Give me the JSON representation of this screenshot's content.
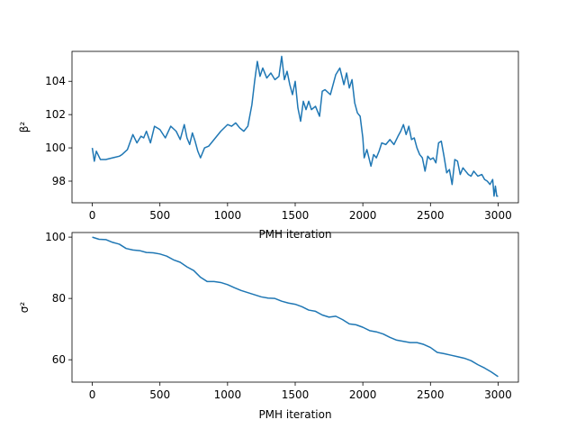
{
  "chart_data": [
    {
      "type": "line",
      "title": "",
      "xlabel": "PMH iteration",
      "ylabel": "β²",
      "xlim": [
        -150,
        3150
      ],
      "ylim": [
        96.7,
        105.8
      ],
      "xticks": [
        0,
        500,
        1000,
        1500,
        2000,
        2500,
        3000
      ],
      "yticks": [
        98,
        100,
        102,
        104
      ],
      "grid": false,
      "series": [
        {
          "color": "#1f77b4",
          "x": [
            0,
            15,
            30,
            60,
            100,
            150,
            200,
            220,
            260,
            300,
            330,
            360,
            380,
            400,
            430,
            460,
            500,
            540,
            580,
            620,
            650,
            680,
            700,
            720,
            740,
            760,
            780,
            800,
            830,
            860,
            900,
            950,
            1000,
            1030,
            1060,
            1090,
            1120,
            1150,
            1180,
            1200,
            1220,
            1240,
            1260,
            1290,
            1320,
            1350,
            1380,
            1400,
            1420,
            1440,
            1460,
            1480,
            1500,
            1520,
            1540,
            1560,
            1580,
            1600,
            1620,
            1650,
            1680,
            1700,
            1720,
            1760,
            1800,
            1830,
            1860,
            1880,
            1900,
            1920,
            1940,
            1960,
            1980,
            2000,
            2010,
            2030,
            2060,
            2080,
            2100,
            2120,
            2140,
            2170,
            2200,
            2230,
            2260,
            2280,
            2300,
            2320,
            2340,
            2360,
            2380,
            2400,
            2420,
            2440,
            2460,
            2480,
            2500,
            2520,
            2540,
            2560,
            2580,
            2600,
            2620,
            2640,
            2660,
            2680,
            2700,
            2720,
            2740,
            2760,
            2780,
            2800,
            2820,
            2850,
            2880,
            2900,
            2920,
            2940,
            2960,
            2970,
            2980,
            2990,
            3000
          ],
          "y": [
            100.0,
            99.2,
            99.8,
            99.3,
            99.3,
            99.4,
            99.5,
            99.6,
            99.9,
            100.8,
            100.3,
            100.7,
            100.6,
            101.0,
            100.3,
            101.3,
            101.1,
            100.6,
            101.3,
            101.0,
            100.5,
            101.4,
            100.6,
            100.2,
            100.9,
            100.4,
            99.8,
            99.4,
            100.0,
            100.1,
            100.5,
            101.0,
            101.4,
            101.3,
            101.5,
            101.2,
            101.0,
            101.3,
            102.6,
            104.0,
            105.2,
            104.3,
            104.8,
            104.2,
            104.5,
            104.1,
            104.3,
            105.5,
            104.1,
            104.6,
            103.8,
            103.2,
            104.0,
            102.4,
            101.6,
            102.8,
            102.3,
            102.8,
            102.3,
            102.5,
            101.9,
            103.4,
            103.5,
            103.2,
            104.4,
            104.8,
            103.8,
            104.5,
            103.6,
            104.1,
            102.7,
            102.1,
            101.9,
            100.6,
            99.4,
            99.9,
            98.9,
            99.6,
            99.4,
            99.8,
            100.3,
            100.2,
            100.5,
            100.2,
            100.7,
            101.0,
            101.4,
            100.8,
            101.3,
            100.5,
            100.6,
            100.0,
            99.6,
            99.4,
            98.6,
            99.5,
            99.3,
            99.4,
            99.1,
            100.3,
            100.4,
            99.5,
            98.5,
            98.7,
            97.8,
            99.3,
            99.2,
            98.4,
            98.8,
            98.6,
            98.4,
            98.3,
            98.6,
            98.3,
            98.4,
            98.1,
            98.0,
            97.8,
            98.1,
            97.1,
            97.7,
            97.1,
            97.1
          ]
        }
      ]
    },
    {
      "type": "line",
      "title": "",
      "xlabel": "PMH iteration",
      "ylabel": "σ²",
      "xlim": [
        -150,
        3150
      ],
      "ylim": [
        52.7,
        101.5
      ],
      "xticks": [
        0,
        500,
        1000,
        1500,
        2000,
        2500,
        3000
      ],
      "yticks": [
        60,
        80,
        100
      ],
      "grid": false,
      "series": [
        {
          "color": "#1f77b4",
          "x": [
            0,
            50,
            100,
            150,
            200,
            250,
            300,
            350,
            400,
            450,
            500,
            550,
            600,
            650,
            700,
            750,
            800,
            850,
            900,
            950,
            1000,
            1050,
            1100,
            1150,
            1200,
            1250,
            1300,
            1350,
            1400,
            1450,
            1500,
            1550,
            1600,
            1650,
            1700,
            1750,
            1800,
            1850,
            1900,
            1950,
            2000,
            2050,
            2100,
            2150,
            2200,
            2250,
            2300,
            2350,
            2400,
            2450,
            2500,
            2550,
            2600,
            2650,
            2700,
            2750,
            2800,
            2850,
            2900,
            2950,
            3000
          ],
          "y": [
            100.0,
            99.3,
            99.2,
            98.3,
            97.7,
            96.3,
            95.8,
            95.6,
            95.0,
            94.9,
            94.5,
            93.8,
            92.6,
            91.8,
            90.3,
            89.1,
            86.9,
            85.5,
            85.5,
            85.2,
            84.5,
            83.5,
            82.6,
            81.9,
            81.2,
            80.5,
            80.1,
            80.0,
            79.1,
            78.5,
            78.1,
            77.3,
            76.2,
            75.8,
            74.6,
            73.9,
            74.2,
            73.1,
            71.7,
            71.4,
            70.6,
            69.5,
            69.1,
            68.4,
            67.3,
            66.4,
            66.0,
            65.6,
            65.6,
            65.0,
            64.0,
            62.4,
            62.0,
            61.5,
            61.0,
            60.5,
            59.7,
            58.4,
            57.3,
            56.0,
            54.5
          ]
        }
      ]
    }
  ]
}
